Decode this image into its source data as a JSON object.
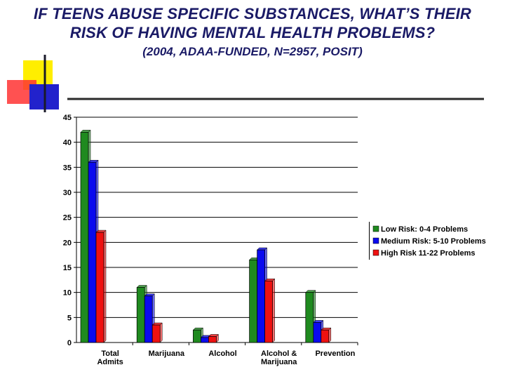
{
  "header": {
    "title_line1": "IF TEENS ABUSE SPECIFIC SUBSTANCES, WHAT’S THEIR",
    "title_line2": "RISK OF HAVING MENTAL HEALTH PROBLEMS?",
    "subtitle": "(2004, ADAA-FUNDED, N=2957, POSIT)"
  },
  "colors": {
    "title": "#1a1a66",
    "low": "#1f8a1f",
    "medium": "#0a0aee",
    "high": "#ee1111",
    "logo_yellow": "#ffee00",
    "logo_red": "#ff3333",
    "logo_blue": "#2222cc"
  },
  "chart_data": {
    "type": "bar",
    "title": "",
    "xlabel": "",
    "ylabel": "",
    "ylim": [
      0,
      45
    ],
    "yticks": [
      0,
      5,
      10,
      15,
      20,
      25,
      30,
      35,
      40,
      45
    ],
    "grid": "horizontal",
    "legend_position": "right",
    "categories": [
      [
        "Total",
        "Admits"
      ],
      [
        "Marijuana"
      ],
      [
        "Alcohol"
      ],
      [
        "Alcohol &",
        "Marijuana"
      ],
      [
        "Prevention"
      ]
    ],
    "series": [
      {
        "name": "Low Risk: 0-4 Problems",
        "color": "#1f8a1f",
        "values": [
          42,
          11,
          2.5,
          16.5,
          10
        ]
      },
      {
        "name": "Medium Risk: 5-10 Problems",
        "color": "#0a0aee",
        "values": [
          36,
          9.3,
          1,
          18.5,
          4
        ]
      },
      {
        "name": "High Risk 11-22 Problems",
        "color": "#ee1111",
        "values": [
          22,
          3.5,
          1.2,
          12.3,
          2.5
        ]
      }
    ]
  }
}
